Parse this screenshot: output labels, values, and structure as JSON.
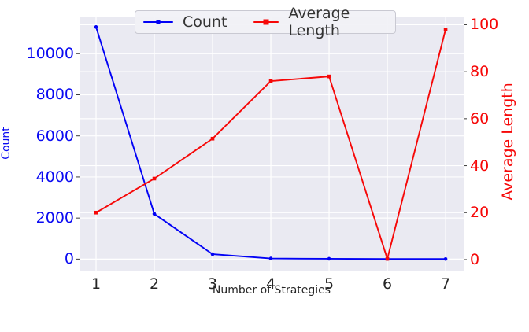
{
  "chart_data": {
    "type": "line",
    "title": "",
    "xlabel": "Number of Strategies",
    "x": [
      1,
      2,
      3,
      4,
      5,
      6,
      7
    ],
    "x_ticks": [
      "1",
      "2",
      "3",
      "4",
      "5",
      "6",
      "7"
    ],
    "xlim": [
      0.716,
      7.31
    ],
    "series": [
      {
        "name": "Count",
        "axis": "left",
        "color": "#0202f5",
        "marker": "circle",
        "values": [
          11300,
          2200,
          240,
          30,
          15,
          5,
          5
        ]
      },
      {
        "name": "Average Length",
        "axis": "right",
        "color": "#f60808",
        "marker": "square",
        "values": [
          20,
          34.5,
          51.5,
          76,
          78,
          0.3,
          98
        ]
      }
    ],
    "left_axis": {
      "label": "Count",
      "color": "#0b0bf2",
      "ticks": [
        0,
        2000,
        4000,
        6000,
        8000,
        10000
      ],
      "lim": [
        -560,
        11810
      ]
    },
    "right_axis": {
      "label": "Average Length",
      "color": "#f60808",
      "ticks": [
        0,
        20,
        40,
        60,
        80,
        100
      ],
      "lim": [
        -4.7,
        103.5
      ]
    },
    "legend": {
      "position": "top-center",
      "entries": [
        "Count",
        "Average Length"
      ]
    },
    "grid": true,
    "style": {
      "plot_background": "#eaeaf2",
      "grid_color": "#ffffff",
      "tick_mark_color": "#3a3a3a",
      "xtick_color": "#262626"
    }
  }
}
